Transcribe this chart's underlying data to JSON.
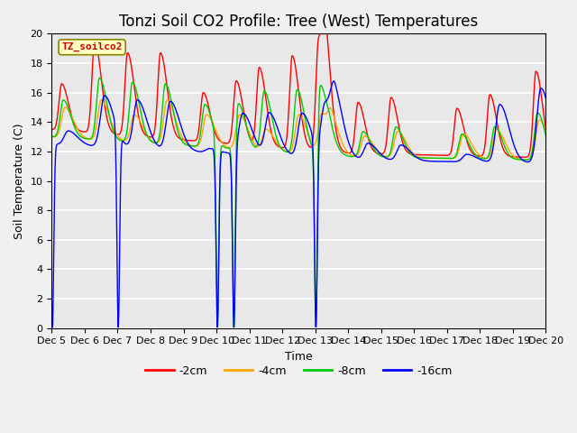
{
  "title": "Tonzi Soil CO2 Profile: Tree (West) Temperatures",
  "xlabel": "Time",
  "ylabel": "Soil Temperature (C)",
  "ylim": [
    0,
    20
  ],
  "x_tick_labels": [
    "Dec 5",
    "Dec 6",
    "Dec 7",
    "Dec 8",
    "Dec 9",
    "Dec 10",
    "Dec 11",
    "Dec 12",
    "Dec 13",
    "Dec 14",
    "Dec 15",
    "Dec 16",
    "Dec 17",
    "Dec 18",
    "Dec 19",
    "Dec 20"
  ],
  "legend_labels": [
    "-2cm",
    "-4cm",
    "-8cm",
    "-16cm"
  ],
  "legend_colors": [
    "#ff0000",
    "#ffa500",
    "#00cc00",
    "#0000ff"
  ],
  "watermark_text": "TZ_soilco2",
  "background_color": "#e8e8e8",
  "grid_color": "#ffffff",
  "title_fontsize": 12,
  "axis_label_fontsize": 9,
  "tick_label_fontsize": 8
}
